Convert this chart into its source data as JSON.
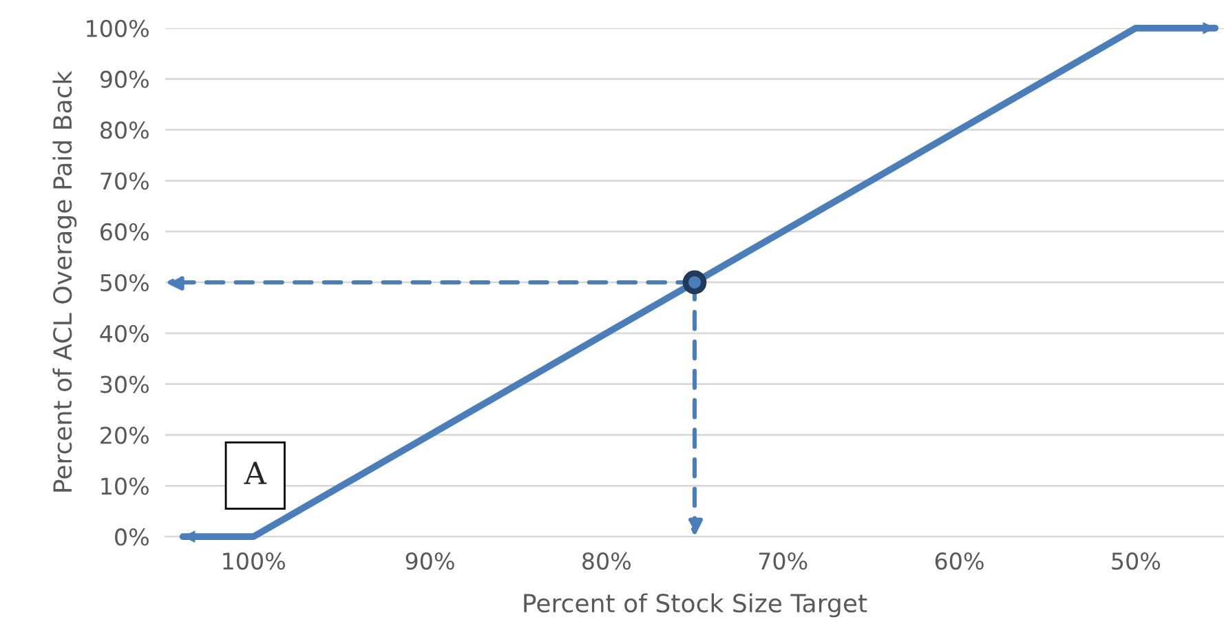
{
  "chart_data": {
    "type": "line",
    "xlabel": "Percent of Stock Size Target",
    "ylabel": "Percent of ACL Overage Paid Back",
    "series": [
      {
        "color": "#4a7ebb",
        "line_style": "solid",
        "marker": "none",
        "x": [
          104,
          100,
          50,
          45.5
        ],
        "values": [
          0,
          0,
          100,
          100
        ]
      },
      {
        "type": "scatter",
        "color": "#1f3a5a",
        "marker": "circle",
        "x": [
          75
        ],
        "values": [
          50
        ]
      }
    ],
    "annotations": [
      "A"
    ],
    "xlim": [
      105,
      45
    ],
    "ylim": [
      0,
      100
    ],
    "xticks": [
      {
        "value": 100,
        "label": "100%"
      },
      {
        "value": 90,
        "label": "90%"
      },
      {
        "value": 80,
        "label": "80%"
      },
      {
        "value": 70,
        "label": "70%"
      },
      {
        "value": 60,
        "label": "60%"
      },
      {
        "value": 50,
        "label": "50%"
      }
    ],
    "yticks": [
      {
        "value": 0,
        "label": "0%"
      },
      {
        "value": 10,
        "label": "10%"
      },
      {
        "value": 20,
        "label": "20%"
      },
      {
        "value": 30,
        "label": "30%"
      },
      {
        "value": 40,
        "label": "40%"
      },
      {
        "value": 50,
        "label": "50%"
      },
      {
        "value": 60,
        "label": "60%"
      },
      {
        "value": 70,
        "label": "70%"
      },
      {
        "value": 80,
        "label": "80%"
      },
      {
        "value": 90,
        "label": "90%"
      },
      {
        "value": 100,
        "label": "100%"
      }
    ],
    "grid": "y",
    "legend": false
  }
}
